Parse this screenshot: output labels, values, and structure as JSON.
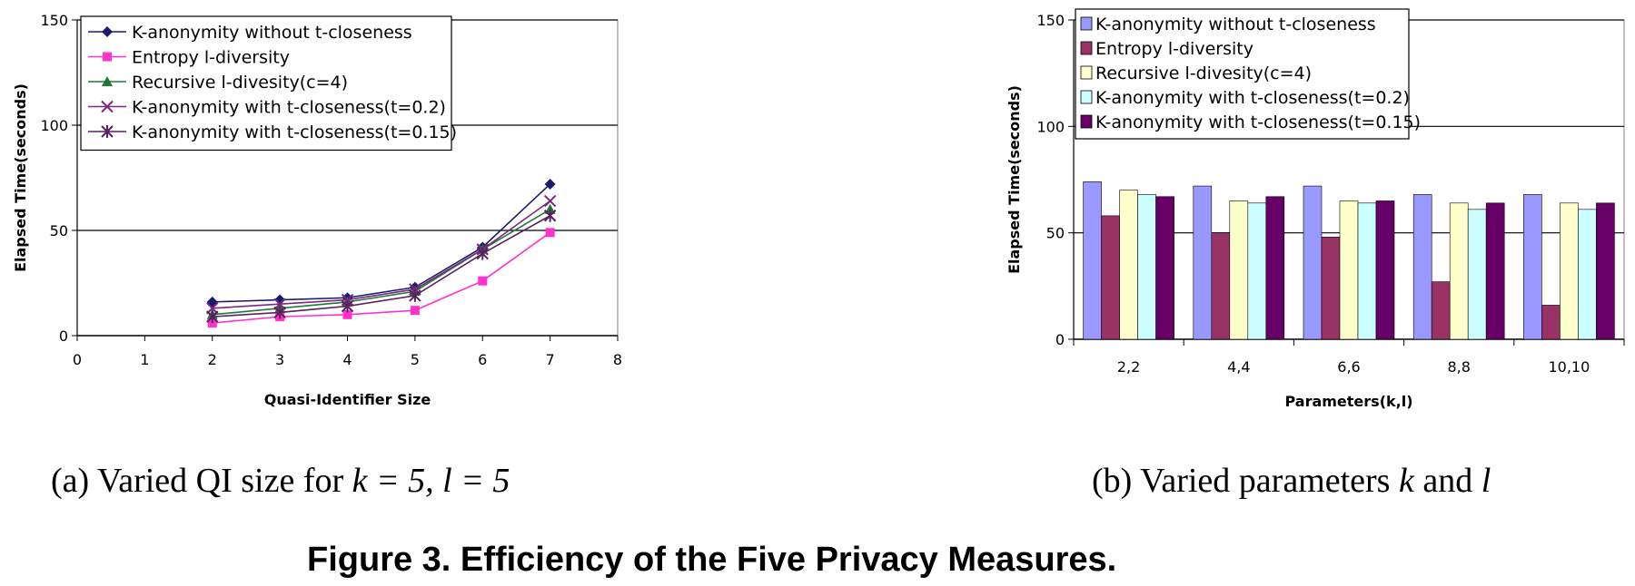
{
  "chart_data": [
    {
      "type": "line",
      "xlabel": "Quasi-Identifier Size",
      "ylabel": "Elapsed Time(seconds)",
      "xlim": [
        0,
        8
      ],
      "ylim": [
        0,
        150
      ],
      "xticks": [
        "0",
        "1",
        "2",
        "3",
        "4",
        "5",
        "6",
        "7",
        "8"
      ],
      "yticks": [
        "0",
        "50",
        "100",
        "150"
      ],
      "grid": "horizontal",
      "legend": "top-left",
      "x": [
        2,
        3,
        4,
        5,
        6,
        7
      ],
      "series": [
        {
          "name": "K-anonymity without t-closeness",
          "color": "#1a1a6e",
          "marker": "diamond",
          "values": [
            16,
            17,
            18,
            23,
            42,
            72
          ]
        },
        {
          "name": "Entropy l-diversity",
          "color": "#ff33cc",
          "marker": "square",
          "values": [
            6,
            9,
            10,
            12,
            26,
            49
          ]
        },
        {
          "name": "Recursive l-divesity(c=4)",
          "color": "#1f7a3a",
          "marker": "triangle",
          "values": [
            10,
            13,
            16,
            21,
            41,
            60
          ]
        },
        {
          "name": "K-anonymity with t-closeness(t=0.2)",
          "color": "#7a2a7a",
          "marker": "x",
          "values": [
            13,
            15,
            17,
            22,
            41,
            64
          ]
        },
        {
          "name": "K-anonymity with t-closeness(t=0.15)",
          "color": "#5a2060",
          "marker": "star",
          "values": [
            9,
            11,
            14,
            19,
            39,
            57
          ]
        }
      ]
    },
    {
      "type": "bar",
      "xlabel": "Parameters(k,l)",
      "ylabel": "Elapsed Time(seconds)",
      "ylim": [
        0,
        150
      ],
      "yticks": [
        "0",
        "50",
        "100",
        "150"
      ],
      "grid": "horizontal",
      "legend": "top-left",
      "categories": [
        "2,2",
        "4,4",
        "6,6",
        "8,8",
        "10,10"
      ],
      "series": [
        {
          "name": "K-anonymity without t-closeness",
          "color": "#9999ff",
          "values": [
            74,
            72,
            72,
            68,
            68
          ]
        },
        {
          "name": "Entropy l-diversity",
          "color": "#993366",
          "values": [
            58,
            50,
            48,
            27,
            16
          ]
        },
        {
          "name": "Recursive l-divesity(c=4)",
          "color": "#ffffcc",
          "values": [
            70,
            65,
            65,
            64,
            64
          ]
        },
        {
          "name": "K-anonymity with t-closeness(t=0.2)",
          "color": "#ccffff",
          "values": [
            68,
            64,
            64,
            61,
            61
          ]
        },
        {
          "name": "K-anonymity with t-closeness(t=0.15)",
          "color": "#660066",
          "values": [
            67,
            67,
            65,
            64,
            64
          ]
        }
      ]
    }
  ],
  "captions": {
    "a_prefix": "(a) Varied QI size for ",
    "a_math": "k = 5, l = 5",
    "b_prefix": "(b) Varied parameters ",
    "b_k": "k",
    "b_and": " and ",
    "b_l": "l",
    "figure": "Figure 3. Efficiency of the Five Privacy Measures."
  }
}
